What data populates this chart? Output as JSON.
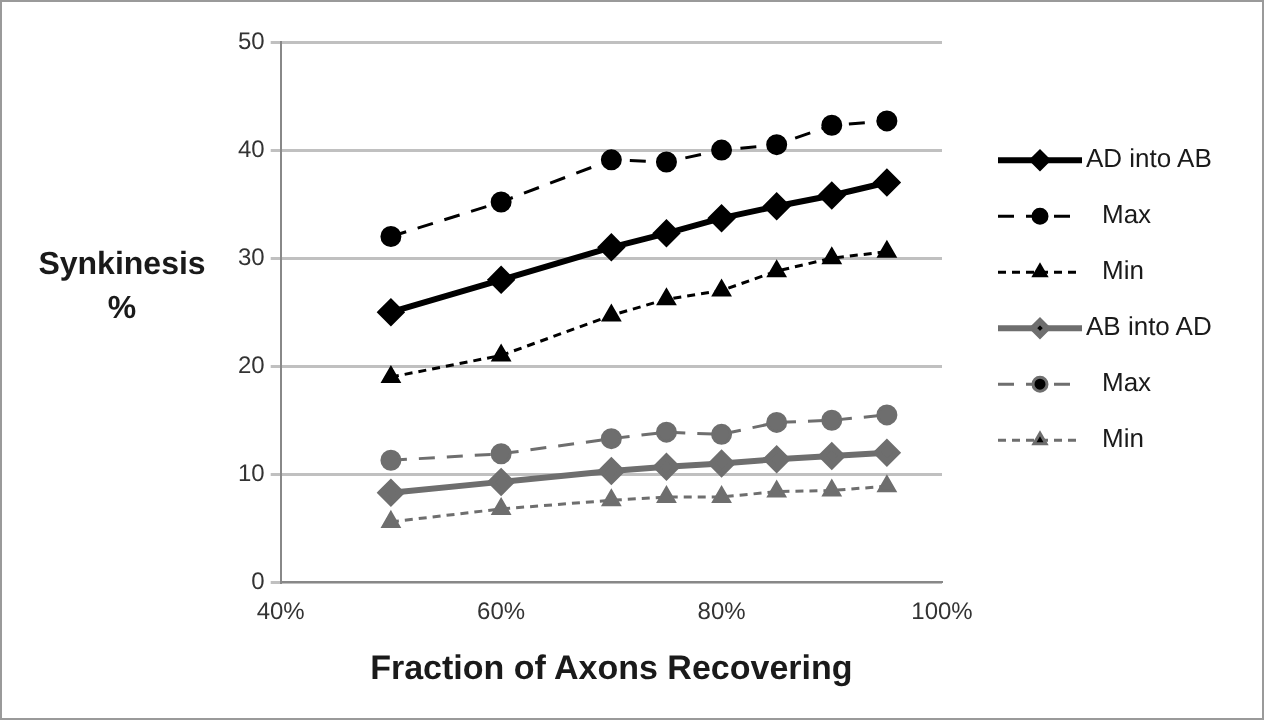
{
  "chart_data": {
    "type": "line",
    "xlabel": "Fraction of Axons Recovering",
    "ylabel": "Synkinesis %",
    "x": [
      50,
      60,
      70,
      75,
      80,
      85,
      90,
      95
    ],
    "xlim": [
      40,
      100
    ],
    "xticks": [
      {
        "value": 40,
        "label": "40%"
      },
      {
        "value": 60,
        "label": "60%"
      },
      {
        "value": 80,
        "label": "80%"
      },
      {
        "value": 100,
        "label": "100%"
      }
    ],
    "ylim": [
      0,
      50
    ],
    "yticks": [
      0,
      10,
      20,
      30,
      40,
      50
    ],
    "grid": "y",
    "legend": "right",
    "series": [
      {
        "name": "AD into AB",
        "color": "#000000",
        "line_style": "solid",
        "marker": "diamond",
        "values": [
          25,
          28,
          31,
          32.3,
          33.7,
          34.8,
          35.8,
          37
        ]
      },
      {
        "name": "Max",
        "color": "#000000",
        "line_style": "dashed",
        "marker": "circle",
        "values": [
          32,
          35.2,
          39.1,
          38.9,
          40,
          40.5,
          42.3,
          42.7
        ]
      },
      {
        "name": "Min",
        "color": "#000000",
        "line_style": "dotted",
        "marker": "triangle",
        "values": [
          19,
          21,
          24.7,
          26.2,
          27,
          28.8,
          30,
          30.6
        ]
      },
      {
        "name": "AB into AD",
        "color": "#6e6e6e",
        "line_style": "solid",
        "marker": "diamond",
        "values": [
          8.3,
          9.3,
          10.3,
          10.7,
          11,
          11.4,
          11.7,
          12
        ]
      },
      {
        "name": "Max",
        "color": "#6e6e6e",
        "line_style": "dashed",
        "marker": "circle",
        "values": [
          11.3,
          11.9,
          13.3,
          13.9,
          13.7,
          14.8,
          15,
          15.5
        ]
      },
      {
        "name": "Min",
        "color": "#6e6e6e",
        "line_style": "dotted",
        "marker": "triangle",
        "values": [
          5.6,
          6.8,
          7.6,
          7.9,
          7.9,
          8.4,
          8.5,
          8.9
        ]
      }
    ]
  }
}
